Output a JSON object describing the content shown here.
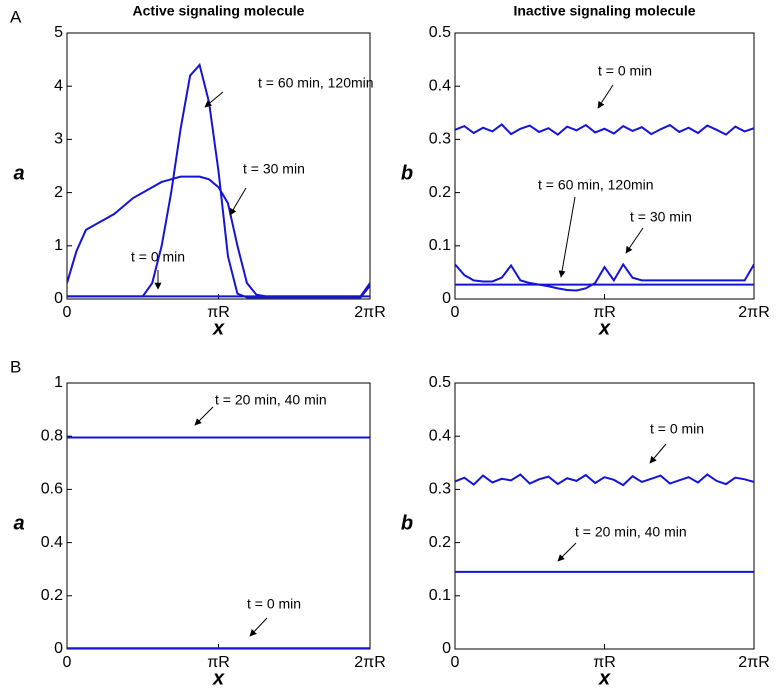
{
  "chart_data": [
    {
      "type": "line",
      "panel": "A",
      "title": "Active signaling molecule",
      "x_label": "x",
      "y_label": "a",
      "x": [
        0,
        0.196,
        0.393,
        0.589,
        0.785,
        0.982,
        1.178,
        1.374,
        1.571,
        1.767,
        1.963,
        2.16,
        2.356,
        2.553,
        2.749,
        2.945,
        3.142,
        3.338,
        3.534,
        3.731,
        3.927,
        4.123,
        4.32,
        4.516,
        4.712,
        4.909,
        5.105,
        5.301,
        5.498,
        5.694,
        5.89,
        6.087,
        6.283
      ],
      "xlim": [
        0,
        6.283
      ],
      "xticks": [
        0,
        {
          "value": 3.142,
          "label": "πR"
        },
        {
          "value": 6.283,
          "label": "2πR"
        }
      ],
      "ylim": [
        0,
        5
      ],
      "yticks": [
        0,
        1,
        2,
        3,
        4,
        5
      ],
      "series": [
        {
          "name": "t = 0 min",
          "color": "#1414d8",
          "values": [
            0.05,
            0.05,
            0.05,
            0.05,
            0.05,
            0.05,
            0.05,
            0.05,
            0.05,
            0.05,
            0.05,
            0.05,
            0.05,
            0.05,
            0.05,
            0.05,
            0.05,
            0.05,
            0.05,
            0.05,
            0.05,
            0.05,
            0.05,
            0.05,
            0.05,
            0.05,
            0.05,
            0.05,
            0.05,
            0.05,
            0.05,
            0.05,
            0.05
          ]
        },
        {
          "name": "t = 30 min",
          "color": "#1414d8",
          "values": [
            0.3,
            0.9,
            1.3,
            1.4,
            1.5,
            1.6,
            1.75,
            1.9,
            2.0,
            2.1,
            2.2,
            2.25,
            2.3,
            2.3,
            2.3,
            2.25,
            2.1,
            1.8,
            1.0,
            0.3,
            0.08,
            0.05,
            0.05,
            0.05,
            0.05,
            0.05,
            0.05,
            0.05,
            0.05,
            0.05,
            0.05,
            0.05,
            0.3
          ]
        },
        {
          "name": "t = 60 min, 120min",
          "color": "#1414d8",
          "values": [
            0.05,
            0.05,
            0.05,
            0.05,
            0.05,
            0.05,
            0.05,
            0.05,
            0.05,
            0.3,
            1.0,
            2.0,
            3.2,
            4.2,
            4.4,
            3.7,
            2.4,
            0.8,
            0.1,
            0.03,
            0.03,
            0.03,
            0.03,
            0.03,
            0.03,
            0.03,
            0.03,
            0.03,
            0.03,
            0.03,
            0.03,
            0.03,
            0.25
          ]
        }
      ]
    },
    {
      "type": "line",
      "title": "Inactive signaling molecule",
      "x_label": "x",
      "y_label": "b",
      "x": [
        0,
        0.196,
        0.393,
        0.589,
        0.785,
        0.982,
        1.178,
        1.374,
        1.571,
        1.767,
        1.963,
        2.16,
        2.356,
        2.553,
        2.749,
        2.945,
        3.142,
        3.338,
        3.534,
        3.731,
        3.927,
        4.123,
        4.32,
        4.516,
        4.712,
        4.909,
        5.105,
        5.301,
        5.498,
        5.694,
        5.89,
        6.087,
        6.283
      ],
      "xlim": [
        0,
        6.283
      ],
      "xticks": [
        0,
        {
          "value": 3.142,
          "label": "πR"
        },
        {
          "value": 6.283,
          "label": "2πR"
        }
      ],
      "ylim": [
        0,
        0.5
      ],
      "yticks": [
        0,
        0.1,
        0.2,
        0.3,
        0.4,
        0.5
      ],
      "series": [
        {
          "name": "t = 0 min",
          "color": "#1414d8",
          "values": [
            0.318,
            0.325,
            0.312,
            0.322,
            0.315,
            0.328,
            0.31,
            0.32,
            0.326,
            0.314,
            0.321,
            0.309,
            0.324,
            0.317,
            0.327,
            0.313,
            0.32,
            0.311,
            0.325,
            0.316,
            0.323,
            0.31,
            0.319,
            0.327,
            0.314,
            0.322,
            0.312,
            0.326,
            0.318,
            0.309,
            0.324,
            0.315,
            0.321
          ]
        },
        {
          "name": "t = 30 min",
          "color": "#1414d8",
          "values": [
            0.065,
            0.045,
            0.035,
            0.033,
            0.033,
            0.04,
            0.063,
            0.035,
            0.03,
            0.027,
            0.024,
            0.02,
            0.017,
            0.016,
            0.02,
            0.03,
            0.06,
            0.035,
            0.065,
            0.04,
            0.035,
            0.035,
            0.035,
            0.035,
            0.035,
            0.035,
            0.035,
            0.035,
            0.035,
            0.035,
            0.035,
            0.035,
            0.065
          ]
        },
        {
          "name": "t = 60 min, 120min",
          "color": "#1414d8",
          "values": [
            0.027,
            0.027,
            0.027,
            0.027,
            0.027,
            0.027,
            0.027,
            0.027,
            0.027,
            0.027,
            0.027,
            0.027,
            0.027,
            0.027,
            0.027,
            0.027,
            0.027,
            0.027,
            0.027,
            0.027,
            0.027,
            0.027,
            0.027,
            0.027,
            0.027,
            0.027,
            0.027,
            0.027,
            0.027,
            0.027,
            0.027,
            0.027,
            0.027
          ]
        }
      ]
    },
    {
      "type": "line",
      "panel": "B",
      "x_label": "x",
      "y_label": "a",
      "x": [
        0,
        0.196,
        0.393,
        0.589,
        0.785,
        0.982,
        1.178,
        1.374,
        1.571,
        1.767,
        1.963,
        2.16,
        2.356,
        2.553,
        2.749,
        2.945,
        3.142,
        3.338,
        3.534,
        3.731,
        3.927,
        4.123,
        4.32,
        4.516,
        4.712,
        4.909,
        5.105,
        5.301,
        5.498,
        5.694,
        5.89,
        6.087,
        6.283
      ],
      "xlim": [
        0,
        6.283
      ],
      "xticks": [
        0,
        {
          "value": 3.142,
          "label": "πR"
        },
        {
          "value": 6.283,
          "label": "2πR"
        }
      ],
      "ylim": [
        0,
        1
      ],
      "yticks": [
        0,
        0.2,
        0.4,
        0.6,
        0.8,
        1
      ],
      "series": [
        {
          "name": "t = 0 min",
          "color": "#1414d8",
          "values": [
            0.003,
            0.003,
            0.003,
            0.003,
            0.003,
            0.003,
            0.003,
            0.003,
            0.003,
            0.003,
            0.003,
            0.003,
            0.003,
            0.003,
            0.003,
            0.003,
            0.003,
            0.003,
            0.003,
            0.003,
            0.003,
            0.003,
            0.003,
            0.003,
            0.003,
            0.003,
            0.003,
            0.003,
            0.003,
            0.003,
            0.003,
            0.003,
            0.003
          ]
        },
        {
          "name": "t = 20 min, 40 min",
          "color": "#1414d8",
          "values": [
            0.795,
            0.795,
            0.795,
            0.795,
            0.795,
            0.795,
            0.795,
            0.795,
            0.795,
            0.795,
            0.795,
            0.795,
            0.795,
            0.795,
            0.795,
            0.795,
            0.795,
            0.795,
            0.795,
            0.795,
            0.795,
            0.795,
            0.795,
            0.795,
            0.795,
            0.795,
            0.795,
            0.795,
            0.795,
            0.795,
            0.795,
            0.795,
            0.795
          ]
        }
      ]
    },
    {
      "type": "line",
      "x_label": "x",
      "y_label": "b",
      "x": [
        0,
        0.196,
        0.393,
        0.589,
        0.785,
        0.982,
        1.178,
        1.374,
        1.571,
        1.767,
        1.963,
        2.16,
        2.356,
        2.553,
        2.749,
        2.945,
        3.142,
        3.338,
        3.534,
        3.731,
        3.927,
        4.123,
        4.32,
        4.516,
        4.712,
        4.909,
        5.105,
        5.301,
        5.498,
        5.694,
        5.89,
        6.087,
        6.283
      ],
      "xlim": [
        0,
        6.283
      ],
      "xticks": [
        0,
        {
          "value": 3.142,
          "label": "πR"
        },
        {
          "value": 6.283,
          "label": "2πR"
        }
      ],
      "ylim": [
        0,
        0.5
      ],
      "yticks": [
        0,
        0.1,
        0.2,
        0.3,
        0.4,
        0.5
      ],
      "series": [
        {
          "name": "t = 0 min",
          "color": "#1414d8",
          "values": [
            0.315,
            0.322,
            0.309,
            0.326,
            0.313,
            0.32,
            0.317,
            0.328,
            0.311,
            0.319,
            0.324,
            0.31,
            0.321,
            0.316,
            0.327,
            0.312,
            0.323,
            0.318,
            0.308,
            0.325,
            0.314,
            0.32,
            0.326,
            0.311,
            0.317,
            0.323,
            0.313,
            0.328,
            0.316,
            0.31,
            0.322,
            0.319,
            0.314
          ]
        },
        {
          "name": "t = 20 min, 40 min",
          "color": "#1414d8",
          "values": [
            0.145,
            0.145,
            0.145,
            0.145,
            0.145,
            0.145,
            0.145,
            0.145,
            0.145,
            0.145,
            0.145,
            0.145,
            0.145,
            0.145,
            0.145,
            0.145,
            0.145,
            0.145,
            0.145,
            0.145,
            0.145,
            0.145,
            0.145,
            0.145,
            0.145,
            0.145,
            0.145,
            0.145,
            0.145,
            0.145,
            0.145,
            0.145,
            0.145
          ]
        }
      ]
    }
  ]
}
